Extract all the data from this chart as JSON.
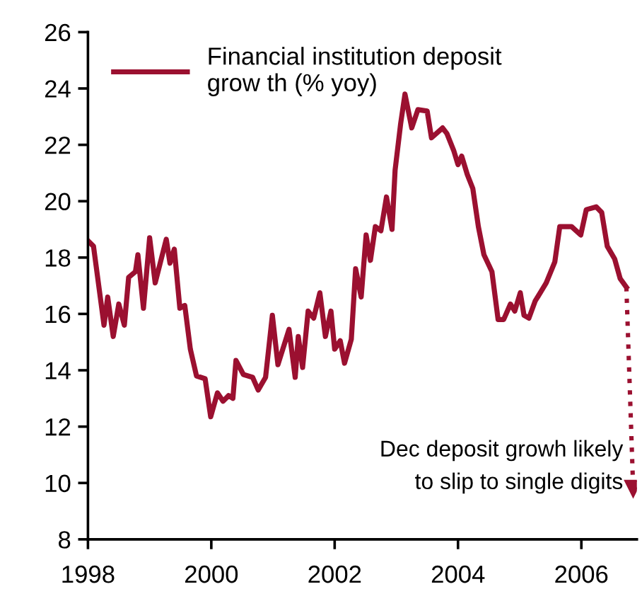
{
  "chart_data": {
    "type": "line",
    "xlim": [
      1998,
      2006.9
    ],
    "xticks": [
      1998,
      2000,
      2002,
      2004,
      2006
    ],
    "ylim": [
      8,
      26
    ],
    "yticks": [
      8,
      10,
      12,
      14,
      16,
      18,
      20,
      22,
      24,
      26
    ],
    "grid": false,
    "legend": "top left",
    "line_style": "solid",
    "marker": "none",
    "series": [
      {
        "name": "Financial institution deposit\ngrow th (% yoy)",
        "color": "#9b1030",
        "x": [
          1998.0,
          1998.09,
          1998.26,
          1998.32,
          1998.41,
          1998.5,
          1998.59,
          1998.66,
          1998.77,
          1998.81,
          1998.9,
          1999.0,
          1999.09,
          1999.27,
          1999.33,
          1999.4,
          1999.49,
          1999.57,
          1999.66,
          1999.76,
          1999.9,
          1999.99,
          2000.1,
          2000.19,
          2000.28,
          2000.35,
          2000.4,
          2000.52,
          2000.67,
          2000.76,
          2000.88,
          2000.99,
          2001.08,
          2001.26,
          2001.36,
          2001.41,
          2001.48,
          2001.57,
          2001.66,
          2001.76,
          2001.85,
          2001.94,
          2002.0,
          2002.09,
          2002.16,
          2002.27,
          2002.34,
          2002.43,
          2002.51,
          2002.58,
          2002.66,
          2002.75,
          2002.84,
          2002.93,
          2002.98,
          2003.07,
          2003.14,
          2003.25,
          2003.35,
          2003.5,
          2003.57,
          2003.75,
          2003.82,
          2003.93,
          2004.0,
          2004.06,
          2004.15,
          2004.24,
          2004.33,
          2004.42,
          2004.55,
          2004.65,
          2004.74,
          2004.85,
          2004.92,
          2005.01,
          2005.07,
          2005.15,
          2005.25,
          2005.43,
          2005.57,
          2005.65,
          2005.84,
          2005.99,
          2006.08,
          2006.24,
          2006.33,
          2006.42,
          2006.54,
          2006.63,
          2006.73
        ],
        "values": [
          18.6,
          18.4,
          15.6,
          16.6,
          15.2,
          16.35,
          15.6,
          17.3,
          17.5,
          18.1,
          16.2,
          18.7,
          17.1,
          18.65,
          17.8,
          18.3,
          16.2,
          16.3,
          14.75,
          13.8,
          13.7,
          12.35,
          13.2,
          12.9,
          13.1,
          13.0,
          14.35,
          13.85,
          13.75,
          13.3,
          13.75,
          15.95,
          14.2,
          15.45,
          13.75,
          15.2,
          14.1,
          16.1,
          15.85,
          16.75,
          15.2,
          16.1,
          14.75,
          15.05,
          14.25,
          15.1,
          17.6,
          16.6,
          18.8,
          17.9,
          19.1,
          18.95,
          20.15,
          19.0,
          21.1,
          22.75,
          23.8,
          22.6,
          23.25,
          23.2,
          22.25,
          22.6,
          22.4,
          21.8,
          21.3,
          21.6,
          20.95,
          20.45,
          19.1,
          18.1,
          17.5,
          15.8,
          15.8,
          16.35,
          16.1,
          16.75,
          15.95,
          15.85,
          16.45,
          17.1,
          17.85,
          19.1,
          19.1,
          18.8,
          19.7,
          19.8,
          19.6,
          18.4,
          17.95,
          17.25,
          16.95
        ]
      },
      {
        "color": "#9b1030",
        "line_style": "dotted",
        "marker": "triangle",
        "x": [
          2006.73,
          2006.84
        ],
        "values": [
          16.95,
          9.8
        ]
      }
    ],
    "annotations": [
      "Dec deposit growh likely\nto slip to single digits"
    ]
  }
}
